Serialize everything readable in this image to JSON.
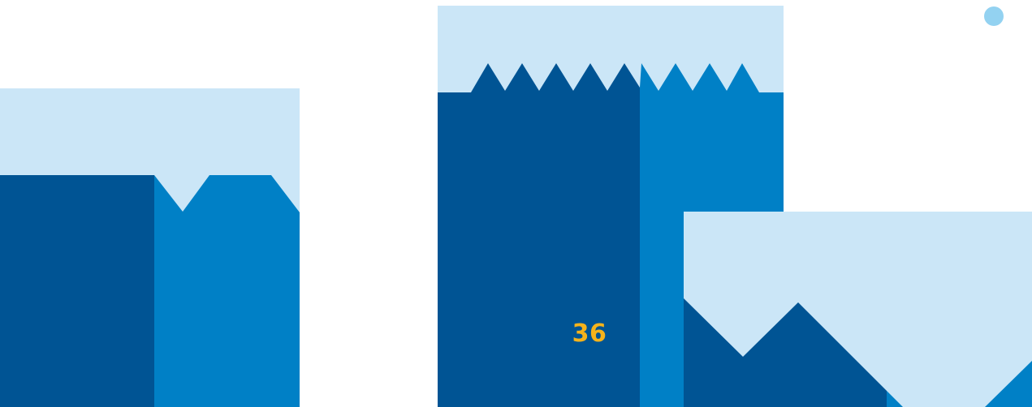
{
  "page": {
    "number": "36"
  },
  "palette": {
    "light_blue": "#CBE6F7",
    "dark_blue": "#005494",
    "mid_blue": "#0080C6",
    "dot_blue": "#93D2F1",
    "page_number_color": "#F5B31B"
  }
}
